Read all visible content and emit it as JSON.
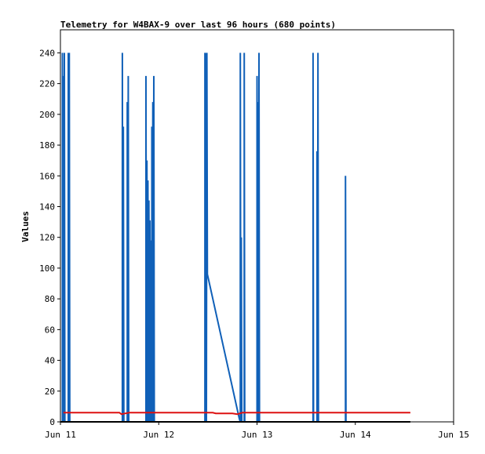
{
  "chart_data": {
    "type": "line",
    "title": "Telemetry for W4BAX-9 over last 96 hours (680 points)",
    "xlabel": "",
    "ylabel": "Values",
    "x_ticks": [
      "Jun 11",
      "Jun 12",
      "Jun 13",
      "Jun 14",
      "Jun 15"
    ],
    "x_range_days": [
      11,
      15
    ],
    "y_ticks": [
      0,
      20,
      40,
      60,
      80,
      100,
      120,
      140,
      160,
      180,
      200,
      220,
      240
    ],
    "ylim": [
      0,
      255
    ],
    "grid": false,
    "colors": {
      "spike_series": "#1060b8",
      "flat_series": "#dd1111",
      "base_series": "#000000"
    },
    "series": [
      {
        "color_key": "spike_series",
        "points": [
          [
            11.02,
            0
          ],
          [
            11.02,
            240
          ],
          [
            11.025,
            0
          ],
          [
            11.03,
            225
          ],
          [
            11.035,
            0
          ],
          [
            11.04,
            240
          ],
          [
            11.045,
            0
          ],
          [
            11.08,
            0
          ],
          [
            11.08,
            240
          ],
          [
            11.085,
            0
          ],
          [
            11.09,
            240
          ],
          [
            11.095,
            0
          ],
          [
            11.63,
            0
          ],
          [
            11.63,
            240
          ],
          [
            11.635,
            0
          ],
          [
            11.64,
            192
          ],
          [
            11.645,
            0
          ],
          [
            11.68,
            0
          ],
          [
            11.68,
            208
          ],
          [
            11.685,
            0
          ],
          [
            11.69,
            225
          ],
          [
            11.695,
            0
          ],
          [
            11.87,
            0
          ],
          [
            11.87,
            225
          ],
          [
            11.875,
            0
          ],
          [
            11.88,
            170
          ],
          [
            11.885,
            0
          ],
          [
            11.89,
            157
          ],
          [
            11.895,
            0
          ],
          [
            11.9,
            0
          ],
          [
            11.9,
            144
          ],
          [
            11.905,
            0
          ],
          [
            11.91,
            131
          ],
          [
            11.915,
            0
          ],
          [
            11.92,
            118
          ],
          [
            11.925,
            0
          ],
          [
            11.93,
            0
          ],
          [
            11.93,
            192
          ],
          [
            11.935,
            0
          ],
          [
            11.94,
            208
          ],
          [
            11.945,
            0
          ],
          [
            11.95,
            225
          ],
          [
            11.955,
            0
          ],
          [
            12.47,
            0
          ],
          [
            12.47,
            240
          ],
          [
            12.475,
            0
          ],
          [
            12.48,
            240
          ],
          [
            12.485,
            0
          ],
          [
            12.49,
            240
          ],
          [
            12.495,
            96
          ],
          [
            12.82,
            2
          ],
          [
            12.83,
            0
          ],
          [
            12.83,
            240
          ],
          [
            12.835,
            0
          ],
          [
            12.84,
            120
          ],
          [
            12.845,
            0
          ],
          [
            12.87,
            0
          ],
          [
            12.87,
            240
          ],
          [
            12.875,
            0
          ],
          [
            13.0,
            0
          ],
          [
            13.0,
            225
          ],
          [
            13.005,
            0
          ],
          [
            13.01,
            208
          ],
          [
            13.015,
            0
          ],
          [
            13.02,
            240
          ],
          [
            13.025,
            0
          ],
          [
            13.57,
            0
          ],
          [
            13.57,
            240
          ],
          [
            13.575,
            0
          ],
          [
            13.61,
            0
          ],
          [
            13.61,
            176
          ],
          [
            13.615,
            0
          ],
          [
            13.62,
            240
          ],
          [
            13.625,
            0
          ],
          [
            13.9,
            0
          ],
          [
            13.9,
            160
          ],
          [
            13.905,
            0
          ]
        ]
      },
      {
        "color_key": "flat_series",
        "points": [
          [
            11.03,
            6
          ],
          [
            11.6,
            6
          ],
          [
            11.62,
            5
          ],
          [
            11.7,
            6
          ],
          [
            12.55,
            6
          ],
          [
            12.58,
            5.5
          ],
          [
            12.75,
            5.5
          ],
          [
            12.8,
            5
          ],
          [
            12.85,
            6
          ],
          [
            14.56,
            6
          ]
        ]
      },
      {
        "color_key": "base_series",
        "points": [
          [
            11.0,
            0
          ],
          [
            14.56,
            0
          ]
        ]
      }
    ]
  }
}
